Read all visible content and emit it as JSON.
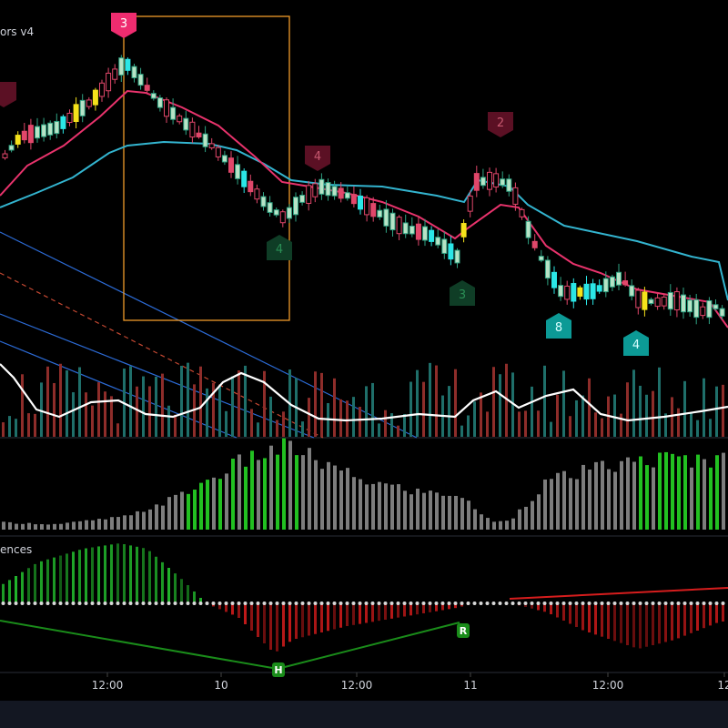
{
  "colors": {
    "background": "#000000",
    "bull": "#2fa383",
    "bear": "#e0476a",
    "bull_body": "#b7e3c6",
    "cyan": "#2be6e6",
    "yellow": "#f5e21b",
    "orange": "#f39c2b",
    "ema_fast": "#e8336c",
    "ema_slow": "#33b4cf",
    "vol_line": "#ffffff",
    "vol_up": "#1f6f6a",
    "vol_down": "#8e2d2a",
    "green_bar": "#22c021",
    "gray_bar": "#7d7d7d",
    "macd_up": "#21b32b",
    "macd_down": "#c01919",
    "zero_dot": "#d8d8d8",
    "divergence_green": "#1a8c1a",
    "divergence_red": "#d61d1d",
    "box": "#f09b2a",
    "channel": "#2c6bd6",
    "dashed": "#c54832",
    "axis_text": "#d1d4dc",
    "bottom_bar": "#131722"
  },
  "panes": {
    "main": {
      "title_fragment": "ors v4"
    },
    "divergence": {
      "title_fragment": "ences"
    }
  },
  "time_axis": {
    "labels": [
      "12:00",
      "10",
      "12:00",
      "11",
      "12:00",
      "12"
    ]
  },
  "markers": [
    {
      "text": "3",
      "style": "pink-down"
    },
    {
      "text": "",
      "style": "maroon-down"
    },
    {
      "text": "4",
      "style": "maroon-down"
    },
    {
      "text": "2",
      "style": "maroon-down"
    },
    {
      "text": "4",
      "style": "green-up"
    },
    {
      "text": "3",
      "style": "green-up"
    },
    {
      "text": "8",
      "style": "teal-up"
    },
    {
      "text": "4",
      "style": "teal-up"
    }
  ],
  "divergence_labels": [
    {
      "text": "R",
      "style": "green"
    },
    {
      "text": "H",
      "style": "green"
    }
  ],
  "icons": {
    "selection_box": "rectangle-drawing-icon",
    "channel": "parallel-channel-icon"
  }
}
